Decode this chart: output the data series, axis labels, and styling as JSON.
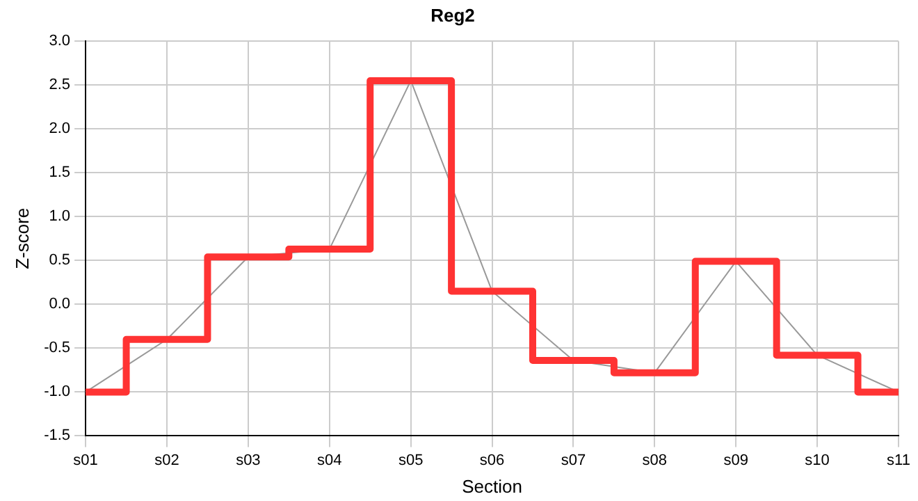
{
  "chart_data": {
    "type": "line",
    "title": "Reg2",
    "xlabel": "Section",
    "ylabel": "Z-score",
    "categories": [
      "s01",
      "s02",
      "s03",
      "s04",
      "s05",
      "s06",
      "s07",
      "s08",
      "s09",
      "s10",
      "s11"
    ],
    "series": [
      {
        "type": "line",
        "color": "#999999",
        "values": [
          -1.0,
          -0.4,
          0.54,
          0.63,
          2.55,
          0.15,
          -0.64,
          -0.78,
          0.49,
          -0.58,
          -1.0
        ]
      },
      {
        "type": "step",
        "color": "#ff3333",
        "values": [
          -1.0,
          -0.4,
          0.54,
          0.63,
          2.55,
          0.15,
          -0.64,
          -0.78,
          0.49,
          -0.58,
          -1.0
        ]
      }
    ],
    "ylim": [
      -1.5,
      3.0
    ],
    "yticks": [
      {
        "value": -1.5,
        "label": "-1.5"
      },
      {
        "value": -1.0,
        "label": "-1.0"
      },
      {
        "value": -0.5,
        "label": "-0.5"
      },
      {
        "value": 0,
        "label": "0.0"
      },
      {
        "value": 0.5,
        "label": "0.5"
      },
      {
        "value": 1.0,
        "label": "1.0"
      },
      {
        "value": 1.5,
        "label": "1.5"
      },
      {
        "value": 2.0,
        "label": "2.0"
      },
      {
        "value": 2.5,
        "label": "2.5"
      },
      {
        "value": 3.0,
        "label": "3.0"
      }
    ],
    "grid": true,
    "legend": false,
    "marker": "none"
  }
}
